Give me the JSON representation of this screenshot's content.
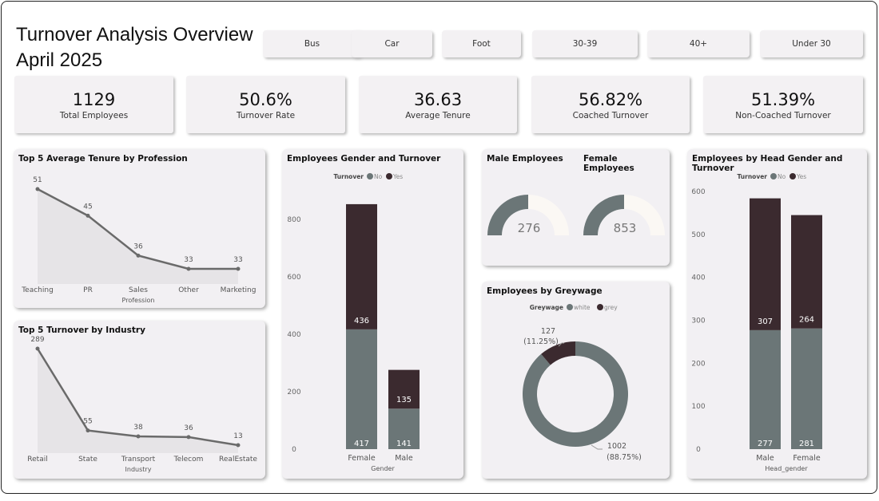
{
  "header": {
    "title_line1": "Turnover Analysis Overview",
    "title_line2": "April 2025"
  },
  "slicers": [
    "Bus",
    "Car",
    "Foot",
    "30-39",
    "40+",
    "Under 30"
  ],
  "kpis": [
    {
      "value": "1129",
      "label": "Total Employees"
    },
    {
      "value": "50.6%",
      "label": "Turnover Rate"
    },
    {
      "value": "36.63",
      "label": "Average Tenure"
    },
    {
      "value": "56.82%",
      "label": "Coached Turnover"
    },
    {
      "value": "51.39%",
      "label": "Non-Coached Turnover"
    }
  ],
  "colors": {
    "no": "#6b7677",
    "yes": "#3b2a2f",
    "gauge_bg": "#fbf8f4",
    "area": "#e6e4e7",
    "line": "#6a6a6a"
  },
  "chart_data": [
    {
      "id": "tenure",
      "type": "line",
      "title": "Top 5 Average Tenure by Profession",
      "xlabel": "Profession",
      "categories": [
        "Teaching",
        "PR",
        "Sales",
        "Other",
        "Marketing"
      ],
      "values": [
        51,
        45,
        36,
        33,
        33
      ]
    },
    {
      "id": "industry",
      "type": "line",
      "title": "Top 5 Turnover by Industry",
      "xlabel": "Industry",
      "categories": [
        "Retail",
        "State",
        "Transport",
        "Telecom",
        "RealEstate"
      ],
      "values": [
        289,
        55,
        38,
        36,
        13
      ]
    },
    {
      "id": "gender",
      "type": "bar",
      "stacked": true,
      "title": "Employees Gender and Turnover",
      "legend_title": "Turnover",
      "xlabel": "Gender",
      "categories": [
        "Female",
        "Male"
      ],
      "yticks": [
        "0",
        "200",
        "400",
        "600",
        "800"
      ],
      "ylim": [
        0,
        800
      ],
      "series": [
        {
          "name": "No",
          "values": [
            417,
            141
          ]
        },
        {
          "name": "Yes",
          "values": [
            436,
            135
          ]
        }
      ]
    },
    {
      "id": "head",
      "type": "bar",
      "stacked": true,
      "title": "Employees by Head Gender and Turnover",
      "legend_title": "Turnover",
      "xlabel": "Head_gender",
      "categories": [
        "Male",
        "Female"
      ],
      "yticks": [
        "0",
        "100",
        "200",
        "300",
        "400",
        "500",
        "600"
      ],
      "ylim": [
        0,
        600
      ],
      "series": [
        {
          "name": "No",
          "values": [
            277,
            281
          ]
        },
        {
          "name": "Yes",
          "values": [
            307,
            264
          ]
        }
      ]
    },
    {
      "id": "greywage",
      "type": "pie",
      "donut": true,
      "title": "Employees by Greywage",
      "legend_title": "Greywage",
      "slices": [
        {
          "name": "white",
          "value": 1002,
          "label": "1002",
          "pct": "(88.75%)"
        },
        {
          "name": "grey",
          "value": 127,
          "label": "127",
          "pct": "(11.25%)"
        }
      ]
    },
    {
      "id": "gauges",
      "type": "gauge",
      "items": [
        {
          "title": "Male Employees",
          "value": "276",
          "fill": 0.5
        },
        {
          "title": "Female Employees",
          "value": "853",
          "fill": 0.5
        }
      ]
    }
  ]
}
